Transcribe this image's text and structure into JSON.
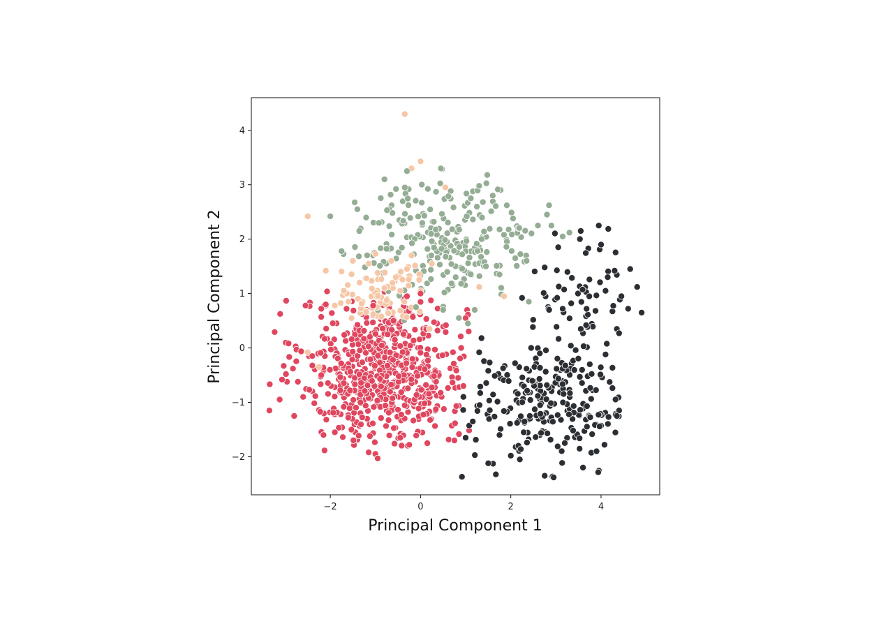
{
  "chart_data": {
    "type": "scatter",
    "title": "",
    "xlabel": "Principal Component 1",
    "ylabel": "Principal Component 2",
    "xlim": [
      -3.75,
      5.3
    ],
    "ylim": [
      -2.7,
      4.6
    ],
    "xticks": [
      -2,
      0,
      2,
      4
    ],
    "yticks": [
      -2,
      -1,
      0,
      1,
      2,
      3,
      4
    ],
    "xtick_labels": [
      "−2",
      "0",
      "2",
      "4"
    ],
    "ytick_labels": [
      "−2",
      "−1",
      "0",
      "1",
      "2",
      "3",
      "4"
    ],
    "grid": false,
    "legend": "none",
    "colors": [
      "#e0475f",
      "#94ad94",
      "#2b2f33",
      "#f6c7a6"
    ],
    "cluster_summary": [
      {
        "center": [
          -0.8,
          -0.4
        ],
        "spread": [
          0.9,
          0.65
        ],
        "count": 650,
        "x_range": [
          -3.4,
          1.1
        ],
        "y_range": [
          -2.05,
          1.05
        ],
        "color": "#e0475f"
      },
      {
        "center": [
          0.6,
          2.05
        ],
        "spread": [
          1.0,
          0.55
        ],
        "count": 240,
        "x_range": [
          -1.8,
          3.2
        ],
        "y_range": [
          0.4,
          3.3
        ],
        "color": "#94ad94"
      },
      {
        "center": [
          3.0,
          -1.0
        ],
        "spread": [
          0.95,
          0.6
        ],
        "count": 230,
        "x_range": [
          0.9,
          4.4
        ],
        "y_range": [
          -2.4,
          0.2
        ],
        "color": "#2b2f33"
      },
      {
        "center": [
          3.6,
          1.1
        ],
        "spread": [
          0.55,
          0.45
        ],
        "count": 50,
        "x_range": [
          2.3,
          4.9
        ],
        "y_range": [
          0.25,
          2.25
        ],
        "color": "#2b2f33"
      },
      {
        "center": [
          -0.9,
          0.9
        ],
        "spread": [
          0.6,
          0.45
        ],
        "count": 60,
        "x_range": [
          -1.9,
          0.3
        ],
        "y_range": [
          0.5,
          1.6
        ],
        "color": "#f6c7a6"
      }
    ],
    "series": [
      {
        "color": "#f6c7a6",
        "points": [
          [
            -0.35,
            4.3
          ],
          [
            -0.2,
            3.3
          ],
          [
            0.0,
            3.43
          ],
          [
            -2.5,
            2.42
          ],
          [
            -2.1,
            1.42
          ],
          [
            0.55,
            2.95
          ],
          [
            -1.15,
            1.55
          ],
          [
            -1.0,
            1.73
          ],
          [
            -0.95,
            1.38
          ],
          [
            -1.35,
            1.2
          ],
          [
            -0.8,
            1.1
          ],
          [
            -0.55,
            1.3
          ],
          [
            -1.7,
            1.05
          ],
          [
            -1.6,
            0.85
          ],
          [
            -0.75,
            0.88
          ],
          [
            -0.45,
            1.05
          ],
          [
            -0.3,
            1.45
          ],
          [
            0.25,
            1.55
          ],
          [
            1.3,
            1.12
          ],
          [
            1.85,
            0.95
          ],
          [
            -1.9,
            0.78
          ],
          [
            0.2,
            0.35
          ],
          [
            -1.2,
            1.28
          ],
          [
            -0.65,
            1.6
          ],
          [
            -0.2,
            1.7
          ],
          [
            -1.5,
            1.6
          ],
          [
            0.0,
            1.05
          ],
          [
            -1.05,
            0.62
          ],
          [
            -2.25,
            -0.35
          ],
          [
            -2.5,
            -0.08
          ]
        ]
      },
      {
        "color": "#e0475f",
        "points": [
          [
            -3.35,
            -1.15
          ],
          [
            -2.8,
            -1.25
          ],
          [
            -2.6,
            -0.9
          ],
          [
            -2.55,
            0.78
          ],
          [
            -2.2,
            0.72
          ],
          [
            -2.1,
            0.8
          ],
          [
            -1.0,
            -1.95
          ],
          [
            -0.95,
            -2.03
          ],
          [
            -1.15,
            -1.92
          ],
          [
            -0.25,
            -1.78
          ],
          [
            0.15,
            -1.75
          ],
          [
            -0.45,
            -1.65
          ],
          [
            0.75,
            -1.7
          ],
          [
            -2.15,
            -1.6
          ],
          [
            -1.9,
            -1.55
          ],
          [
            1.0,
            0.55
          ],
          [
            0.9,
            0.0
          ],
          [
            0.95,
            -0.7
          ],
          [
            -0.6,
            0.5
          ],
          [
            -0.3,
            0.95
          ],
          [
            0.0,
            1.0
          ],
          [
            -1.05,
            0.78
          ],
          [
            -2.4,
            -0.15
          ],
          [
            -2.2,
            -0.5
          ]
        ]
      },
      {
        "color": "#94ad94",
        "points": [
          [
            -0.3,
            3.25
          ],
          [
            0.45,
            3.3
          ],
          [
            -0.8,
            3.1
          ],
          [
            1.3,
            2.98
          ],
          [
            1.6,
            2.8
          ],
          [
            -2.0,
            2.42
          ],
          [
            -1.75,
            1.78
          ],
          [
            2.05,
            2.38
          ],
          [
            2.6,
            2.25
          ],
          [
            2.9,
            2.25
          ],
          [
            3.3,
            2.12
          ],
          [
            3.15,
            2.05
          ],
          [
            2.35,
            1.6
          ],
          [
            2.1,
            1.65
          ],
          [
            1.75,
            1.35
          ],
          [
            1.2,
            0.7
          ],
          [
            1.05,
            0.45
          ],
          [
            0.5,
            0.7
          ],
          [
            -0.1,
            0.75
          ],
          [
            2.4,
            0.85
          ],
          [
            0.85,
            0.55
          ],
          [
            -1.4,
            2.55
          ],
          [
            0.9,
            1.18
          ],
          [
            1.45,
            1.5
          ]
        ]
      },
      {
        "color": "#2b2f33",
        "points": [
          [
            3.95,
            2.25
          ],
          [
            3.55,
            2.15
          ],
          [
            4.0,
            1.9
          ],
          [
            3.05,
            1.85
          ],
          [
            4.3,
            1.42
          ],
          [
            4.8,
            1.12
          ],
          [
            4.9,
            0.65
          ],
          [
            4.6,
            0.72
          ],
          [
            4.35,
            0.35
          ],
          [
            4.4,
            0.27
          ],
          [
            3.6,
            0.27
          ],
          [
            3.55,
            0.35
          ],
          [
            2.75,
            1.48
          ],
          [
            2.25,
            0.92
          ],
          [
            2.85,
            0.7
          ],
          [
            3.15,
            0.72
          ],
          [
            4.1,
            1.05
          ],
          [
            4.45,
            0.95
          ],
          [
            4.1,
            -0.12
          ],
          [
            3.75,
            -0.3
          ],
          [
            2.45,
            0.0
          ],
          [
            1.35,
            0.18
          ],
          [
            1.3,
            -0.08
          ],
          [
            1.5,
            -0.42
          ],
          [
            1.0,
            -1.65
          ],
          [
            1.5,
            -2.12
          ],
          [
            2.75,
            -2.35
          ],
          [
            2.95,
            -2.38
          ],
          [
            3.6,
            -2.2
          ],
          [
            3.9,
            -1.9
          ],
          [
            4.4,
            -1.15
          ],
          [
            4.35,
            -1.25
          ],
          [
            2.2,
            -2.05
          ],
          [
            2.0,
            -1.98
          ],
          [
            1.75,
            -1.6
          ],
          [
            0.95,
            -0.9
          ]
        ]
      }
    ]
  }
}
